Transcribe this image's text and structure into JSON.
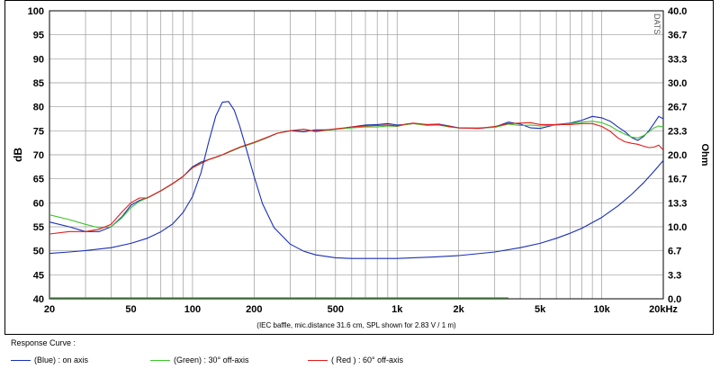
{
  "chart_data": {
    "type": "line",
    "xscale": "log",
    "xlim": [
      20,
      20000
    ],
    "ylim": [
      40,
      100
    ],
    "y2lim": [
      0,
      40
    ],
    "ylabel": "dB",
    "y2label": "Ohm",
    "x_ticks": [
      {
        "v": 20,
        "label": "20"
      },
      {
        "v": 50,
        "label": "50"
      },
      {
        "v": 100,
        "label": "100"
      },
      {
        "v": 200,
        "label": "200"
      },
      {
        "v": 500,
        "label": "500"
      },
      {
        "v": 1000,
        "label": "1k"
      },
      {
        "v": 2000,
        "label": "2k"
      },
      {
        "v": 5000,
        "label": "5k"
      },
      {
        "v": 10000,
        "label": "10k"
      },
      {
        "v": 20000,
        "label": "20kHz"
      }
    ],
    "y_ticks": [
      {
        "v": 100,
        "label": "100"
      },
      {
        "v": 95,
        "label": "95"
      },
      {
        "v": 90,
        "label": "90"
      },
      {
        "v": 85,
        "label": "85"
      },
      {
        "v": 80,
        "label": "80"
      },
      {
        "v": 75,
        "label": "75"
      },
      {
        "v": 70,
        "label": "70"
      },
      {
        "v": 65,
        "label": "65"
      },
      {
        "v": 60,
        "label": "60"
      },
      {
        "v": 55,
        "label": "55"
      },
      {
        "v": 50,
        "label": "50"
      },
      {
        "v": 45,
        "label": "45"
      },
      {
        "v": 40,
        "label": "40"
      }
    ],
    "y2_ticks": [
      {
        "v": 40,
        "label": "40.0"
      },
      {
        "v": 36.7,
        "label": "36.7"
      },
      {
        "v": 33.3,
        "label": "33.3"
      },
      {
        "v": 30,
        "label": "30.0"
      },
      {
        "v": 26.7,
        "label": "26.7"
      },
      {
        "v": 23.3,
        "label": "23.3"
      },
      {
        "v": 20,
        "label": "20.0"
      },
      {
        "v": 16.7,
        "label": "16.7"
      },
      {
        "v": 13.3,
        "label": "13.3"
      },
      {
        "v": 10,
        "label": "10.0"
      },
      {
        "v": 6.7,
        "label": "6.7"
      },
      {
        "v": 3.3,
        "label": "3.3"
      },
      {
        "v": 0,
        "label": "0.0"
      }
    ],
    "caption": "(IEC baffle, mic.distance 31.6 cm, SPL shown for 2.83 V / 1 m)",
    "watermark": "DATS",
    "grid": true,
    "series": [
      {
        "color": "#1a2fb8",
        "axis": "left",
        "x": [
          20,
          25,
          30,
          35,
          40,
          45,
          50,
          55,
          60,
          70,
          80,
          90,
          100,
          110,
          120,
          130,
          140,
          150,
          170,
          200,
          230,
          260,
          300,
          350,
          400,
          450,
          500,
          600,
          700,
          800,
          900,
          1000,
          1100,
          1200,
          1400,
          1600,
          1800,
          2000,
          2500,
          3000,
          3500,
          4000,
          4500,
          5000,
          6000,
          7000,
          8000,
          9000,
          10000,
          11000,
          12000,
          13000,
          14000,
          15000,
          16000,
          17000,
          18000,
          19000,
          20000
        ],
        "values": [
          56,
          55,
          54,
          54,
          55,
          57,
          59.5,
          60.5,
          61,
          62.5,
          64,
          65.5,
          67.5,
          68.5,
          69,
          69.5,
          70,
          70.5,
          71.5,
          72.5,
          73.5,
          74.5,
          75,
          74.8,
          75.2,
          75.2,
          75.3,
          75.8,
          76.2,
          76.3,
          76.5,
          76.2,
          76.3,
          76.5,
          76.3,
          76.4,
          76,
          75.6,
          75.5,
          75.8,
          76.8,
          76.4,
          75.6,
          75.5,
          76.3,
          76.6,
          77.2,
          78,
          77.7,
          77,
          75.8,
          74.8,
          73.6,
          73,
          73.8,
          75,
          76.5,
          78,
          77.5
        ]
      },
      {
        "color": "#3cc42a",
        "axis": "left",
        "x": [
          20,
          25,
          30,
          35,
          40,
          45,
          50,
          55,
          60,
          70,
          80,
          90,
          100,
          110,
          120,
          130,
          140,
          150,
          170,
          200,
          230,
          260,
          300,
          350,
          400,
          450,
          500,
          600,
          700,
          800,
          900,
          1000,
          1100,
          1200,
          1400,
          1600,
          1800,
          2000,
          2500,
          3000,
          3500,
          4000,
          4500,
          5000,
          6000,
          7000,
          8000,
          9000,
          10000,
          11000,
          12000,
          13000,
          14000,
          15000,
          16000,
          17000,
          18000,
          19000,
          20000
        ],
        "values": [
          57.5,
          56.5,
          55.5,
          54.8,
          55,
          56.8,
          59,
          60.3,
          61,
          62.5,
          64,
          65.5,
          67.3,
          68.3,
          69,
          69.5,
          70,
          70.5,
          71.5,
          72.5,
          73.5,
          74.5,
          75,
          75.3,
          74.8,
          75.1,
          75.3,
          75.6,
          75.8,
          75.8,
          76,
          75.9,
          76.3,
          76.5,
          76.1,
          76.2,
          75.8,
          75.6,
          75.6,
          75.7,
          76.4,
          76.1,
          76.2,
          76,
          76.2,
          76.5,
          76.8,
          77,
          76.7,
          76,
          75,
          74.3,
          73.7,
          73.5,
          74,
          74.8,
          75.6,
          76,
          75.8
        ]
      },
      {
        "color": "#e41a1a",
        "axis": "left",
        "x": [
          20,
          25,
          30,
          35,
          40,
          45,
          50,
          55,
          60,
          70,
          80,
          90,
          100,
          110,
          120,
          130,
          140,
          150,
          170,
          200,
          230,
          260,
          300,
          350,
          400,
          450,
          500,
          600,
          700,
          800,
          900,
          1000,
          1100,
          1200,
          1400,
          1600,
          1800,
          2000,
          2500,
          3000,
          3500,
          4000,
          4500,
          5000,
          6000,
          7000,
          8000,
          9000,
          10000,
          11000,
          12000,
          13000,
          14000,
          15000,
          16000,
          17000,
          18000,
          19000,
          20000
        ],
        "values": [
          53.5,
          54,
          54,
          54.5,
          55.5,
          58,
          60,
          61,
          61,
          62.5,
          64,
          65.5,
          67.3,
          68.2,
          69,
          69.5,
          70,
          70.6,
          71.6,
          72.6,
          73.6,
          74.5,
          75,
          75.3,
          74.9,
          75.2,
          75.4,
          75.8,
          76,
          76.1,
          76.2,
          76,
          76.4,
          76.6,
          76.3,
          76.3,
          75.9,
          75.6,
          75.5,
          75.9,
          76.5,
          76.6,
          76.7,
          76.3,
          76.3,
          76.3,
          76.5,
          76.5,
          75.9,
          74.9,
          73.5,
          72.7,
          72.4,
          72.2,
          71.8,
          71.5,
          71.6,
          72,
          71
        ]
      },
      {
        "color": "#1a2fb8",
        "axis": "right",
        "x": [
          20,
          25,
          30,
          40,
          50,
          60,
          70,
          80,
          90,
          100,
          110,
          120,
          130,
          140,
          150,
          160,
          170,
          180,
          200,
          220,
          250,
          300,
          350,
          400,
          500,
          600,
          700,
          800,
          1000,
          1200,
          1500,
          2000,
          3000,
          4000,
          5000,
          6000,
          7000,
          8000,
          10000,
          12000,
          14000,
          16000,
          18000,
          20000
        ],
        "values": [
          6.3,
          6.5,
          6.7,
          7.1,
          7.7,
          8.4,
          9.3,
          10.4,
          12,
          14.2,
          17.5,
          21.8,
          25.4,
          27.3,
          27.4,
          26.2,
          24,
          21.6,
          17,
          13.2,
          9.9,
          7.6,
          6.6,
          6.1,
          5.7,
          5.6,
          5.6,
          5.6,
          5.6,
          5.7,
          5.8,
          6,
          6.5,
          7.1,
          7.7,
          8.4,
          9.1,
          9.8,
          11.3,
          12.9,
          14.5,
          16.1,
          17.7,
          19.2
        ]
      },
      {
        "color": "#3cc42a",
        "axis": "right",
        "x": [
          20,
          3500
        ],
        "values": [
          0.15,
          0.15
        ]
      }
    ]
  },
  "legend": {
    "title": "Response Curve :",
    "items": [
      {
        "label": "(Blue) : on axis",
        "color": "#1a2fb8"
      },
      {
        "label": "(Green) : 30° off-axis",
        "color": "#3cc42a"
      },
      {
        "label": "( Red ) : 60° off-axis",
        "color": "#e41a1a"
      }
    ]
  }
}
